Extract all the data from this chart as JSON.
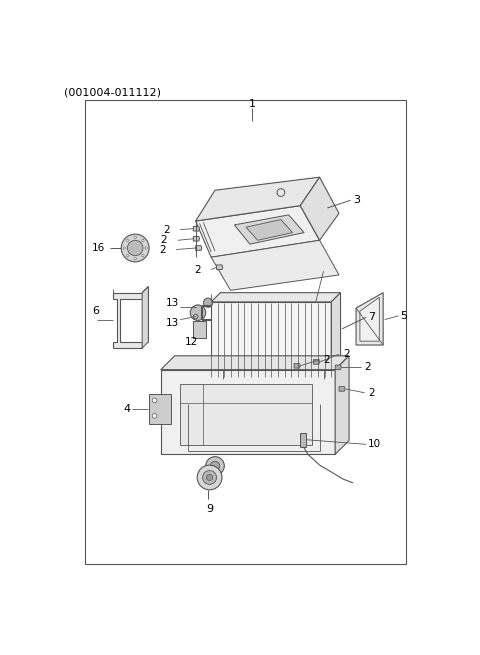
{
  "title": "(001004-011112)",
  "bg_color": "#ffffff",
  "border_color": "#555555",
  "line_color": "#555555",
  "text_color": "#000000",
  "fig_width": 4.8,
  "fig_height": 6.55,
  "dpi": 100
}
